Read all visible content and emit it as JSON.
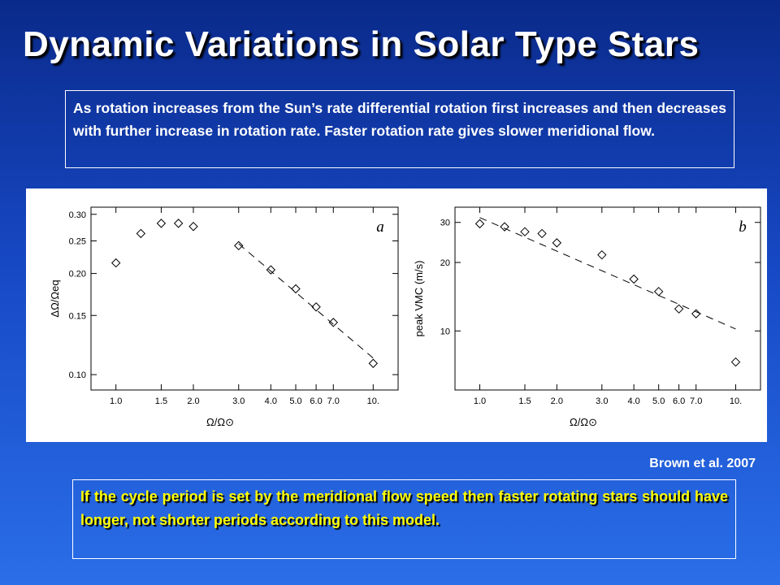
{
  "slide": {
    "title": "Dynamic Variations in Solar Type Stars",
    "intro": "As rotation increases from the Sun’s rate differential rotation first increases and then decreases with further increase in rotation rate. Faster rotation rate gives slower meridional flow.",
    "citation": "Brown et al. 2007",
    "conclusion": "If the cycle period is set by the meridional flow speed then faster rotating stars should have longer, not shorter periods according to this model.",
    "colors": {
      "text": "#ffffff",
      "highlight": "#ffff00",
      "background_top": "#0a2a8a",
      "background_bottom": "#2a6ee8"
    }
  },
  "chart_data": [
    {
      "type": "scatter",
      "panel": "a",
      "xlabel": "Ω/Ω⊙",
      "ylabel": "ΔΩ/Ωeq",
      "xscale": "log",
      "yscale": "log",
      "xlim": [
        0.8,
        12.5
      ],
      "ylim": [
        0.09,
        0.315
      ],
      "xticks": [
        1.0,
        1.5,
        2.0,
        3.0,
        4.0,
        5.0,
        6.0,
        7.0,
        10.0
      ],
      "xticklabels": [
        "1.0",
        "1.5",
        "2.0",
        "3.0",
        "4.0",
        "5.0",
        "6.0",
        "7.0",
        "10."
      ],
      "yticks": [
        0.1,
        0.15,
        0.2,
        0.25,
        0.3
      ],
      "yticklabels": [
        "0.10",
        "0.15",
        "0.20",
        "0.25",
        "0.30"
      ],
      "series": [
        {
          "marker": "diamond",
          "x": [
            1.0,
            1.25,
            1.5,
            1.75,
            2.0,
            3.0,
            4.0,
            5.0,
            6.0,
            7.0,
            10.0
          ],
          "y": [
            0.215,
            0.263,
            0.282,
            0.282,
            0.276,
            0.242,
            0.205,
            0.18,
            0.159,
            0.143,
            0.108
          ]
        }
      ],
      "fit_line": {
        "style": "dashed",
        "x": [
          3.0,
          10.0
        ],
        "y": [
          0.245,
          0.112
        ]
      },
      "grid": false
    },
    {
      "type": "scatter",
      "panel": "b",
      "xlabel": "Ω/Ω⊙",
      "ylabel": "peak VMC (m/s)",
      "xscale": "log",
      "yscale": "log",
      "xlim": [
        0.8,
        12.5
      ],
      "ylim": [
        5.5,
        35
      ],
      "xticks": [
        1.0,
        1.5,
        2.0,
        3.0,
        4.0,
        5.0,
        6.0,
        7.0,
        10.0
      ],
      "xticklabels": [
        "1.0",
        "1.5",
        "2.0",
        "3.0",
        "4.0",
        "5.0",
        "6.0",
        "7.0",
        "10."
      ],
      "yticks": [
        10,
        20,
        30
      ],
      "yticklabels": [
        "10",
        "20",
        "30"
      ],
      "series": [
        {
          "marker": "diamond",
          "x": [
            1.0,
            1.25,
            1.5,
            1.75,
            2.0,
            3.0,
            4.0,
            5.0,
            6.0,
            7.0,
            10.0
          ],
          "y": [
            29.6,
            28.7,
            27.3,
            26.8,
            24.4,
            21.6,
            16.9,
            14.9,
            12.5,
            11.9,
            7.3
          ]
        }
      ],
      "fit_line": {
        "style": "dashed",
        "x": [
          1.0,
          10.0
        ],
        "y": [
          31.5,
          10.2
        ]
      },
      "grid": false
    }
  ]
}
